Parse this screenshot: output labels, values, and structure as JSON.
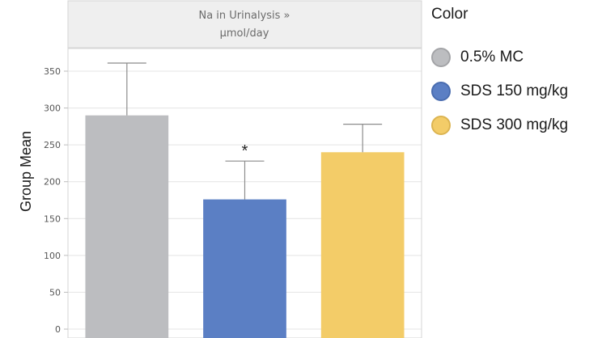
{
  "chart_data": {
    "type": "bar",
    "title": "Na in Urinalysis »",
    "subtitle": "µmol/day",
    "ylabel": "Group Mean",
    "xlabel": "",
    "ylim": [
      0,
      370
    ],
    "yticks": [
      0,
      50,
      100,
      150,
      200,
      250,
      300,
      350
    ],
    "grid": true,
    "categories": [
      "0.5% MC",
      "SDS 150 mg/kg",
      "SDS 300 mg/kg"
    ],
    "values": [
      290,
      176,
      240
    ],
    "error_upper": [
      361,
      228,
      278
    ],
    "colors": [
      "#bcbdc0",
      "#5b7fc4",
      "#f3cc68"
    ],
    "annotations": [
      {
        "category": "SDS 150 mg/kg",
        "text": "*"
      }
    ],
    "legend": {
      "title": "Color",
      "placement": "right",
      "items": [
        {
          "label": "0.5% MC",
          "color": "#bcbdc0",
          "border": "#a3a4a7"
        },
        {
          "label": "SDS 150 mg/kg",
          "color": "#5b7fc4",
          "border": "#4a6db0"
        },
        {
          "label": "SDS 300 mg/kg",
          "color": "#f3cc68",
          "border": "#dcb451"
        }
      ]
    }
  }
}
